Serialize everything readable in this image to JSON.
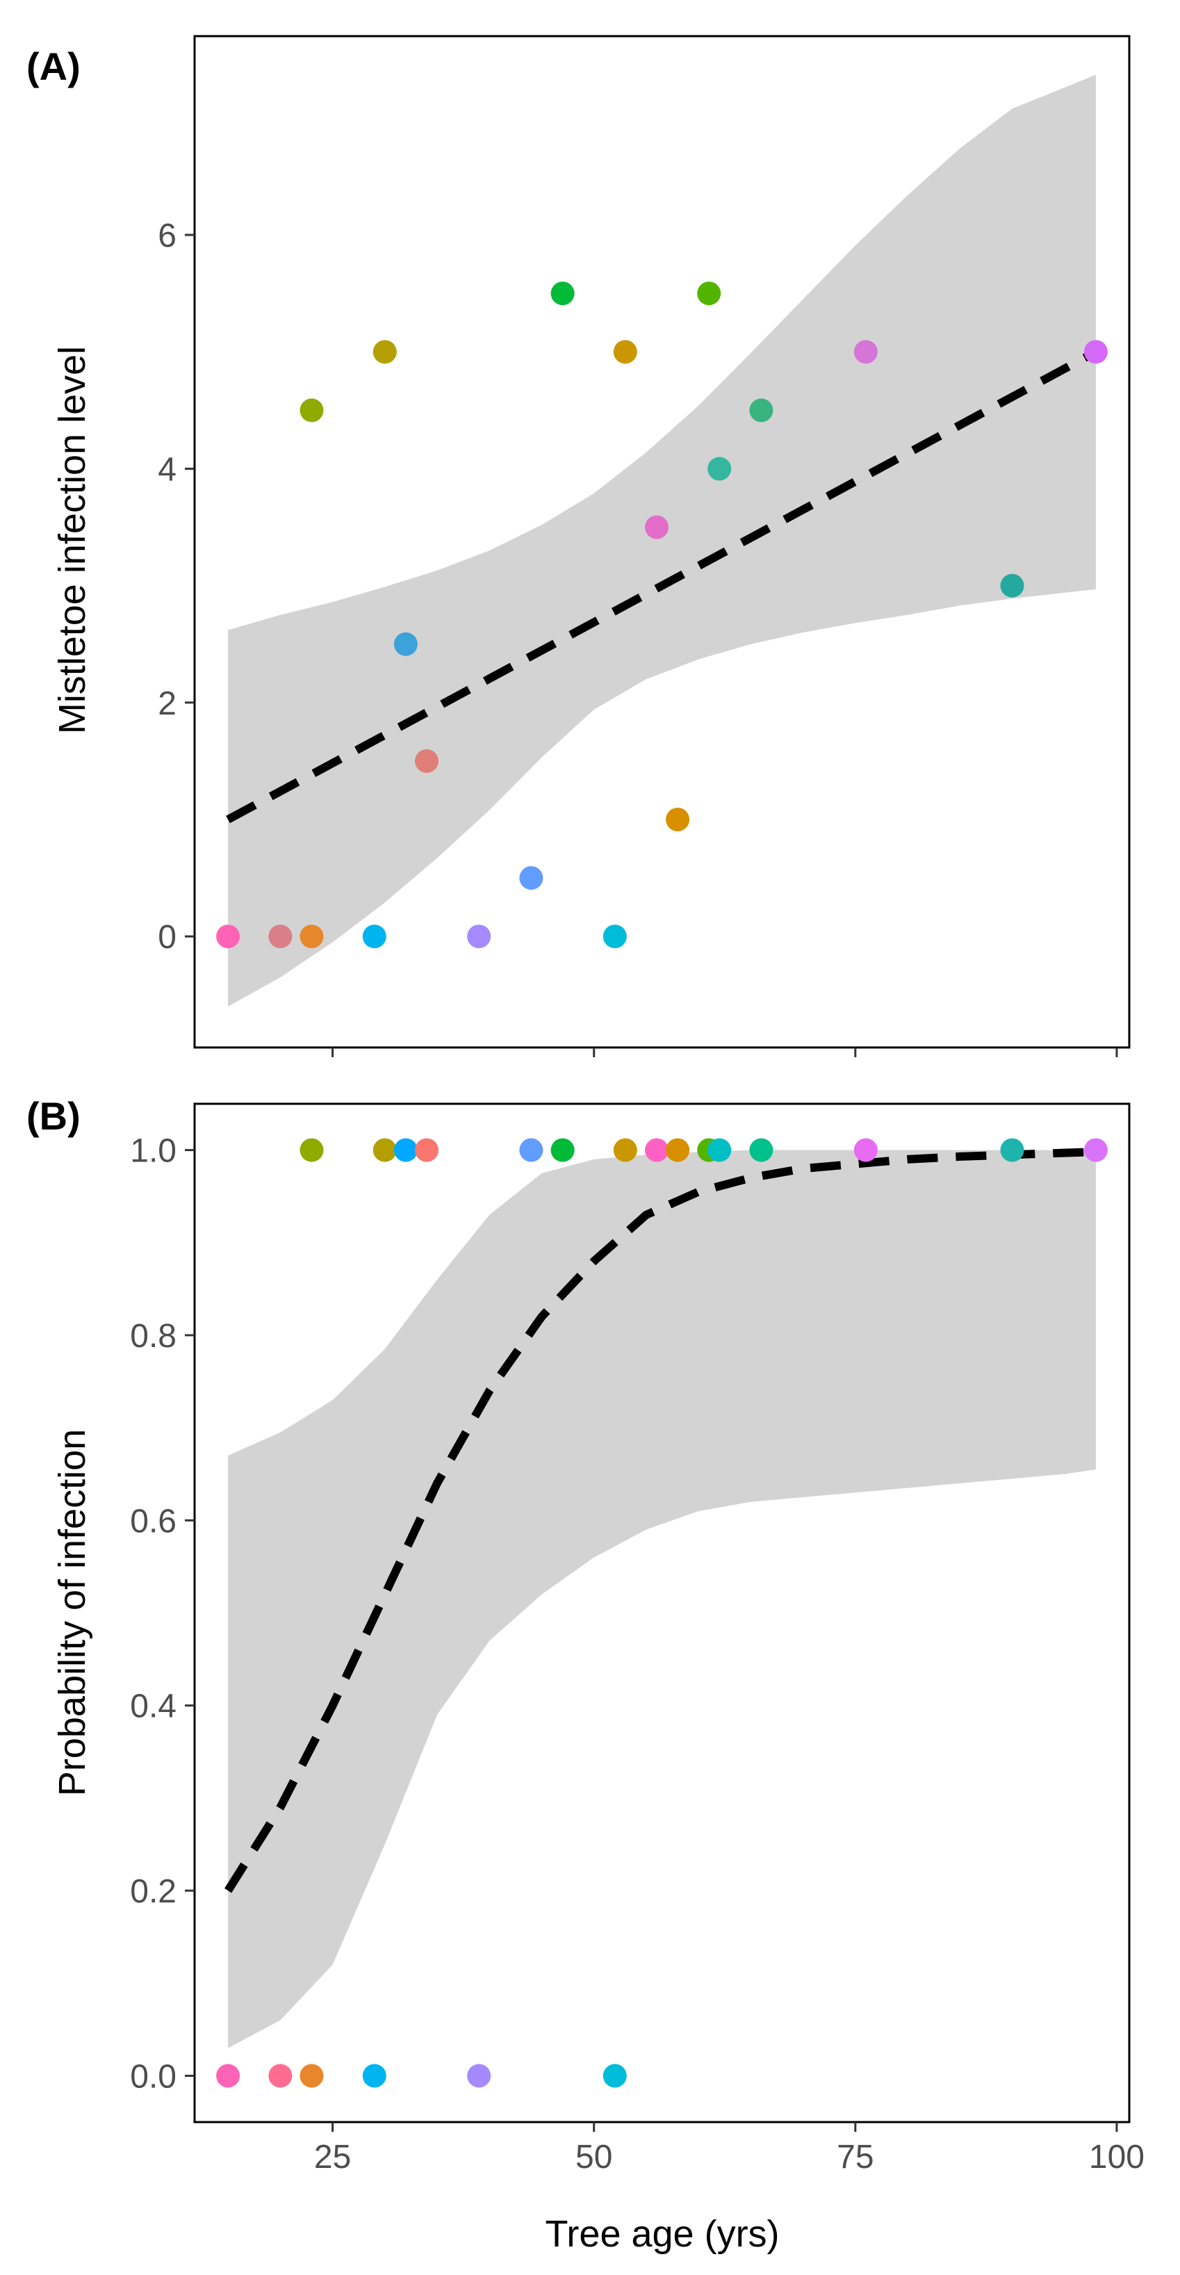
{
  "chart_data": [
    {
      "type": "scatter",
      "panel_label": "(A)",
      "xlabel": "",
      "ylabel": "Mistletoe infection level",
      "xlim": [
        11.8,
        101.2
      ],
      "ylim": [
        -0.95,
        7.7
      ],
      "x_ticks": [
        25,
        50,
        75,
        100
      ],
      "y_ticks": [
        0,
        2,
        4,
        6
      ],
      "y_tick_labels": [
        "0",
        "2",
        "4",
        "6"
      ],
      "points": [
        {
          "x": 15,
          "y": 0,
          "color": "#FF63B6"
        },
        {
          "x": 20,
          "y": 0,
          "color": "#DA7E8A"
        },
        {
          "x": 23,
          "y": 0,
          "color": "#E8862B"
        },
        {
          "x": 23,
          "y": 4.5,
          "color": "#8FAA00"
        },
        {
          "x": 29,
          "y": 0,
          "color": "#00B4EF"
        },
        {
          "x": 30,
          "y": 5,
          "color": "#B3A000"
        },
        {
          "x": 32,
          "y": 2.5,
          "color": "#3DA2DA"
        },
        {
          "x": 34,
          "y": 1.5,
          "color": "#E07F77"
        },
        {
          "x": 39,
          "y": 0,
          "color": "#A58AFF"
        },
        {
          "x": 44,
          "y": 0.5,
          "color": "#619CFF"
        },
        {
          "x": 47,
          "y": 5.5,
          "color": "#00BA38"
        },
        {
          "x": 52,
          "y": 0,
          "color": "#00BCD8"
        },
        {
          "x": 53,
          "y": 5,
          "color": "#C99800"
        },
        {
          "x": 56,
          "y": 3.5,
          "color": "#E26EC9"
        },
        {
          "x": 58,
          "y": 1,
          "color": "#D89000"
        },
        {
          "x": 61,
          "y": 5.5,
          "color": "#53B400"
        },
        {
          "x": 62,
          "y": 4,
          "color": "#35B69F"
        },
        {
          "x": 66,
          "y": 4.5,
          "color": "#39B47E"
        },
        {
          "x": 76,
          "y": 5,
          "color": "#D575D8"
        },
        {
          "x": 90,
          "y": 3,
          "color": "#24A8A0"
        },
        {
          "x": 98,
          "y": 5,
          "color": "#D568F8"
        }
      ],
      "fit_line": {
        "style": "dashed",
        "color": "#000000",
        "x": [
          15,
          98
        ],
        "y": [
          1.0,
          5.0
        ]
      },
      "confidence_band": {
        "color": "#D3D3D3",
        "x": [
          15,
          20,
          25,
          30,
          35,
          40,
          45,
          50,
          55,
          60,
          65,
          70,
          75,
          80,
          85,
          90,
          95,
          98
        ],
        "upper": [
          2.62,
          2.75,
          2.86,
          2.99,
          3.13,
          3.3,
          3.52,
          3.79,
          4.14,
          4.54,
          4.99,
          5.45,
          5.91,
          6.34,
          6.74,
          7.08,
          7.26,
          7.37
        ],
        "lower": [
          -0.6,
          -0.35,
          -0.05,
          0.29,
          0.67,
          1.08,
          1.53,
          1.94,
          2.2,
          2.37,
          2.5,
          2.6,
          2.68,
          2.75,
          2.83,
          2.89,
          2.94,
          2.97
        ]
      },
      "grid": false
    },
    {
      "type": "scatter",
      "panel_label": "(B)",
      "xlabel": "Tree age (yrs)",
      "ylabel": "Probability of infection",
      "xlim": [
        11.8,
        101.2
      ],
      "ylim": [
        -0.05,
        1.05
      ],
      "x_ticks": [
        25,
        50,
        75,
        100
      ],
      "x_tick_labels": [
        "25",
        "50",
        "75",
        "100"
      ],
      "y_ticks": [
        0.0,
        0.2,
        0.4,
        0.6,
        0.8,
        1.0
      ],
      "y_tick_labels": [
        "0.0",
        "0.2",
        "0.4",
        "0.6",
        "0.8",
        "1.0"
      ],
      "points": [
        {
          "x": 15,
          "y": 0,
          "color": "#FF63B6"
        },
        {
          "x": 20,
          "y": 0,
          "color": "#FF6C91"
        },
        {
          "x": 23,
          "y": 0,
          "color": "#E8862B"
        },
        {
          "x": 29,
          "y": 0,
          "color": "#00B4EF"
        },
        {
          "x": 39,
          "y": 0,
          "color": "#A58AFF"
        },
        {
          "x": 52,
          "y": 0,
          "color": "#00BCD8"
        },
        {
          "x": 23,
          "y": 1,
          "color": "#8FAA00"
        },
        {
          "x": 30,
          "y": 1,
          "color": "#B3A000"
        },
        {
          "x": 32,
          "y": 1,
          "color": "#00A9FF"
        },
        {
          "x": 34,
          "y": 1,
          "color": "#F8766D"
        },
        {
          "x": 44,
          "y": 1,
          "color": "#619CFF"
        },
        {
          "x": 47,
          "y": 1,
          "color": "#00BA38"
        },
        {
          "x": 53,
          "y": 1,
          "color": "#C99800"
        },
        {
          "x": 56,
          "y": 1,
          "color": "#FF61C3"
        },
        {
          "x": 58,
          "y": 1,
          "color": "#D89000"
        },
        {
          "x": 61,
          "y": 1,
          "color": "#53B400"
        },
        {
          "x": 62,
          "y": 1,
          "color": "#00BFC4"
        },
        {
          "x": 66,
          "y": 1,
          "color": "#00C08B"
        },
        {
          "x": 76,
          "y": 1,
          "color": "#E76BF3"
        },
        {
          "x": 90,
          "y": 1,
          "color": "#1FB3AE"
        },
        {
          "x": 98,
          "y": 1,
          "color": "#DB72FB"
        }
      ],
      "fit_line": {
        "style": "dashed",
        "color": "#000000",
        "x": [
          15,
          20,
          25,
          30,
          35,
          40,
          45,
          50,
          55,
          60,
          65,
          70,
          75,
          80,
          85,
          90,
          95,
          98
        ],
        "y": [
          0.2,
          0.29,
          0.4,
          0.52,
          0.64,
          0.74,
          0.82,
          0.88,
          0.93,
          0.955,
          0.97,
          0.98,
          0.985,
          0.99,
          0.993,
          0.995,
          0.997,
          0.998
        ]
      },
      "confidence_band": {
        "color": "#D3D3D3",
        "x": [
          15,
          20,
          25,
          30,
          35,
          40,
          45,
          50,
          55,
          60,
          65,
          70,
          75,
          80,
          85,
          90,
          95,
          98
        ],
        "upper": [
          0.67,
          0.695,
          0.73,
          0.785,
          0.86,
          0.93,
          0.975,
          0.99,
          0.995,
          0.998,
          1.0,
          1.0,
          1.0,
          1.0,
          1.0,
          1.0,
          1.0,
          1.0
        ],
        "lower": [
          0.03,
          0.06,
          0.12,
          0.25,
          0.39,
          0.47,
          0.52,
          0.56,
          0.59,
          0.61,
          0.62,
          0.625,
          0.63,
          0.635,
          0.64,
          0.645,
          0.65,
          0.655
        ]
      },
      "grid": false
    }
  ]
}
